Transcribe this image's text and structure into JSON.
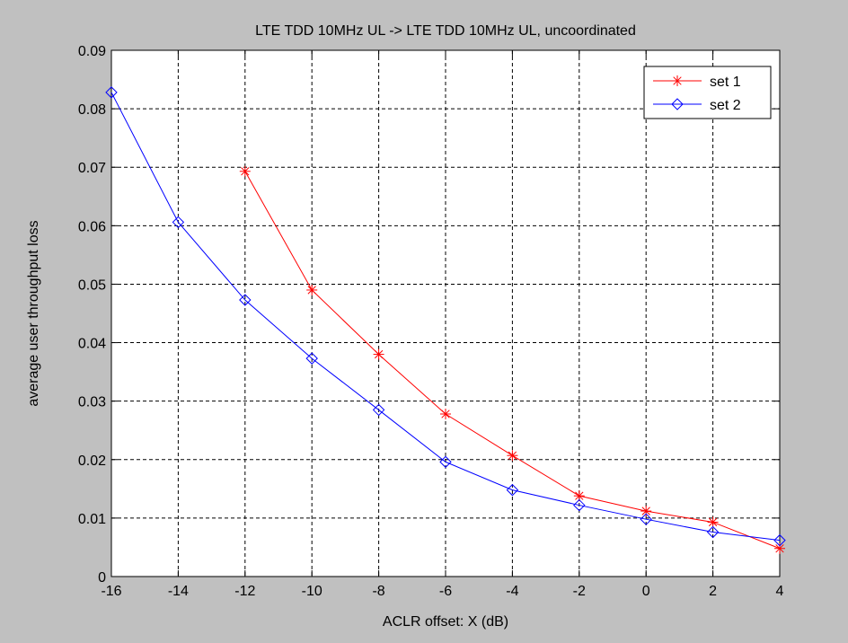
{
  "chart_data": {
    "type": "line",
    "title": "LTE TDD 10MHz UL -> LTE TDD 10MHz UL, uncoordinated",
    "xlabel": "ACLR offset: X (dB)",
    "ylabel": "average user throughput loss",
    "xlim": [
      -16,
      4
    ],
    "ylim": [
      0,
      0.09
    ],
    "xticks": [
      "-16",
      "-14",
      "-12",
      "-10",
      "-8",
      "-6",
      "-4",
      "-2",
      "0",
      "2",
      "4"
    ],
    "yticks": [
      "0",
      "0.01",
      "0.02",
      "0.03",
      "0.04",
      "0.05",
      "0.06",
      "0.07",
      "0.08",
      "0.09"
    ],
    "grid": true,
    "legend_position": "top-right",
    "series": [
      {
        "name": "set 1",
        "color": "#ff0000",
        "marker": "asterisk",
        "x": [
          -12,
          -10,
          -8,
          -6,
          -4,
          -2,
          0,
          2,
          4
        ],
        "y": [
          0.0693,
          0.049,
          0.038,
          0.0278,
          0.0207,
          0.0138,
          0.0112,
          0.0093,
          0.0048
        ]
      },
      {
        "name": "set 2",
        "color": "#0000ff",
        "marker": "diamond",
        "x": [
          -16,
          -14,
          -12,
          -10,
          -8,
          -6,
          -4,
          -2,
          0,
          2,
          4
        ],
        "y": [
          0.0828,
          0.0606,
          0.0473,
          0.0373,
          0.0285,
          0.0196,
          0.0148,
          0.0122,
          0.0098,
          0.0076,
          0.0062
        ]
      }
    ]
  }
}
